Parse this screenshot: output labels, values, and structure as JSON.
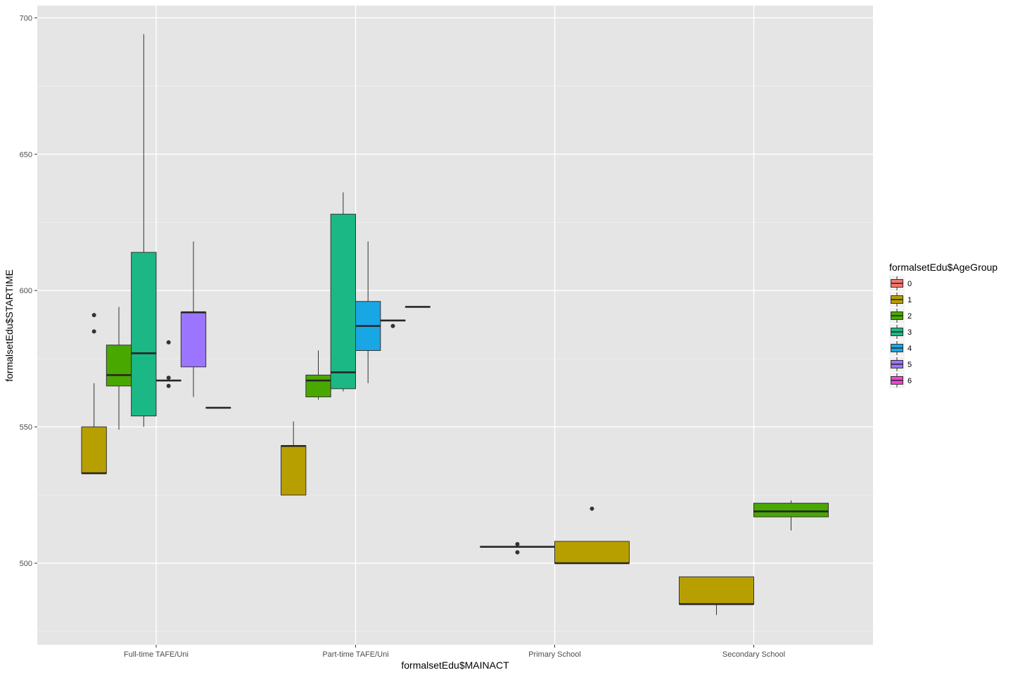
{
  "chart_data": {
    "type": "boxplot",
    "xlabel": "formalsetEdu$MAINACT",
    "ylabel": "formalsetEdu$STARTIME",
    "categories": [
      "Full-time TAFE/Uni",
      "Part-time TAFE/Uni",
      "Primary School",
      "Secondary School"
    ],
    "y_ticks": [
      500,
      550,
      600,
      650,
      700
    ],
    "ylim": [
      470,
      705
    ],
    "grid": true,
    "legend": {
      "title": "formalsetEdu$AgeGroup",
      "placement": "right",
      "items": [
        {
          "label": "0",
          "color": "#F8766D"
        },
        {
          "label": "1",
          "color": "#B79F00"
        },
        {
          "label": "2",
          "color": "#49A800"
        },
        {
          "label": "3",
          "color": "#1BB886"
        },
        {
          "label": "4",
          "color": "#19A6E5"
        },
        {
          "label": "5",
          "color": "#9C75FF"
        },
        {
          "label": "6",
          "color": "#F542D4"
        }
      ]
    },
    "series": [
      {
        "name": "1",
        "category": "Full-time TAFE/Uni",
        "lower_whisker": 533,
        "q1": 533,
        "median": 533,
        "q3": 550,
        "upper_whisker": 566,
        "outliers": [
          585,
          591
        ]
      },
      {
        "name": "2",
        "category": "Full-time TAFE/Uni",
        "lower_whisker": 549,
        "q1": 565,
        "median": 569,
        "q3": 580,
        "upper_whisker": 594,
        "outliers": []
      },
      {
        "name": "3",
        "category": "Full-time TAFE/Uni",
        "lower_whisker": 550,
        "q1": 554,
        "median": 577,
        "q3": 614,
        "upper_whisker": 694,
        "outliers": []
      },
      {
        "name": "4",
        "category": "Full-time TAFE/Uni",
        "lower_whisker": 567,
        "q1": 567,
        "median": 567,
        "q3": 567,
        "upper_whisker": 567,
        "outliers": [
          565,
          568,
          581
        ]
      },
      {
        "name": "5",
        "category": "Full-time TAFE/Uni",
        "lower_whisker": 561,
        "q1": 572,
        "median": 592,
        "q3": 592,
        "upper_whisker": 618,
        "outliers": []
      },
      {
        "name": "6",
        "category": "Full-time TAFE/Uni",
        "lower_whisker": 557,
        "q1": 557,
        "median": 557,
        "q3": 557,
        "upper_whisker": 557,
        "outliers": []
      },
      {
        "name": "1",
        "category": "Part-time TAFE/Uni",
        "lower_whisker": 525,
        "q1": 525,
        "median": 543,
        "q3": 543,
        "upper_whisker": 552,
        "outliers": []
      },
      {
        "name": "2",
        "category": "Part-time TAFE/Uni",
        "lower_whisker": 560,
        "q1": 561,
        "median": 567,
        "q3": 569,
        "upper_whisker": 578,
        "outliers": []
      },
      {
        "name": "3",
        "category": "Part-time TAFE/Uni",
        "lower_whisker": 563,
        "q1": 564,
        "median": 570,
        "q3": 628,
        "upper_whisker": 636,
        "outliers": []
      },
      {
        "name": "4",
        "category": "Part-time TAFE/Uni",
        "lower_whisker": 566,
        "q1": 578,
        "median": 587,
        "q3": 596,
        "upper_whisker": 618,
        "outliers": []
      },
      {
        "name": "5",
        "category": "Part-time TAFE/Uni",
        "lower_whisker": 589,
        "q1": 589,
        "median": 589,
        "q3": 589,
        "upper_whisker": 589,
        "outliers": [
          587
        ]
      },
      {
        "name": "6",
        "category": "Part-time TAFE/Uni",
        "lower_whisker": 594,
        "q1": 594,
        "median": 594,
        "q3": 594,
        "upper_whisker": 594,
        "outliers": []
      },
      {
        "name": "0",
        "category": "Primary School",
        "lower_whisker": 506,
        "q1": 506,
        "median": 506,
        "q3": 506,
        "upper_whisker": 506,
        "outliers": [
          504,
          507
        ]
      },
      {
        "name": "1",
        "category": "Primary School",
        "lower_whisker": 500,
        "q1": 500,
        "median": 500,
        "q3": 508,
        "upper_whisker": 508,
        "outliers": [
          520
        ]
      },
      {
        "name": "1",
        "category": "Secondary School",
        "lower_whisker": 481,
        "q1": 485,
        "median": 485,
        "q3": 495,
        "upper_whisker": 495,
        "outliers": []
      },
      {
        "name": "2",
        "category": "Secondary School",
        "lower_whisker": 512,
        "q1": 517,
        "median": 519,
        "q3": 522,
        "upper_whisker": 523,
        "outliers": []
      }
    ]
  }
}
